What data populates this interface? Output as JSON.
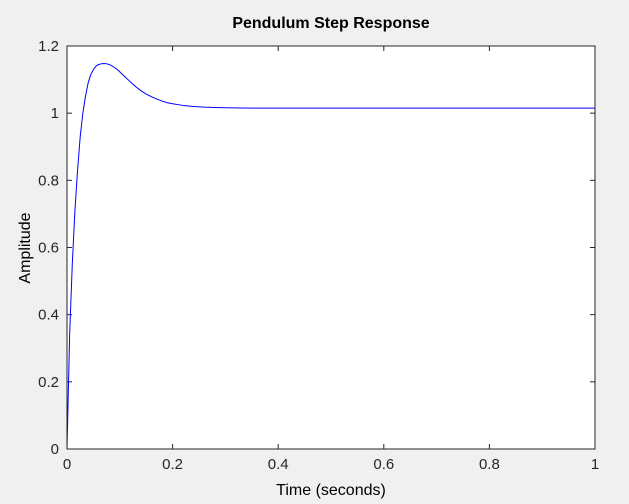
{
  "chart_data": {
    "type": "line",
    "title": "Pendulum Step Response",
    "xlabel": "Time (seconds)",
    "ylabel": "Amplitude",
    "xlim": [
      0,
      1
    ],
    "ylim": [
      0,
      1.2
    ],
    "grid": false,
    "legend": "none",
    "x_ticks": [
      0,
      0.2,
      0.4,
      0.6,
      0.8,
      1
    ],
    "x_tick_labels": [
      "0",
      "0.2",
      "0.4",
      "0.6",
      "0.8",
      "1"
    ],
    "y_ticks": [
      0,
      0.2,
      0.4,
      0.6,
      0.8,
      1,
      1.2
    ],
    "y_tick_labels": [
      "0",
      "0.2",
      "0.4",
      "0.6",
      "0.8",
      "1",
      "1.2"
    ],
    "series": [
      {
        "color": "#0000ff",
        "x": [
          0,
          0.005,
          0.01,
          0.015,
          0.02,
          0.025,
          0.03,
          0.035,
          0.04,
          0.045,
          0.05,
          0.055,
          0.06,
          0.065,
          0.07,
          0.075,
          0.08,
          0.085,
          0.09,
          0.095,
          0.1,
          0.11,
          0.12,
          0.13,
          0.14,
          0.15,
          0.16,
          0.17,
          0.18,
          0.19,
          0.2,
          0.22,
          0.24,
          0.26,
          0.28,
          0.3,
          0.33,
          0.36,
          0.4,
          0.45,
          0.5,
          0.6,
          0.7,
          0.8,
          0.9,
          1.0
        ],
        "y": [
          0,
          0.34,
          0.55,
          0.71,
          0.83,
          0.93,
          1.0,
          1.05,
          1.09,
          1.115,
          1.13,
          1.14,
          1.145,
          1.147,
          1.148,
          1.147,
          1.145,
          1.141,
          1.136,
          1.13,
          1.123,
          1.108,
          1.093,
          1.079,
          1.067,
          1.057,
          1.049,
          1.042,
          1.036,
          1.031,
          1.028,
          1.023,
          1.02,
          1.018,
          1.017,
          1.016,
          1.0155,
          1.015,
          1.015,
          1.015,
          1.015,
          1.015,
          1.015,
          1.015,
          1.015,
          1.015
        ]
      }
    ]
  },
  "colors": {
    "figure_background": "#f0f0f0",
    "axes_background": "#ffffff",
    "axes_edge": "#262626",
    "line": "#0000ff"
  }
}
